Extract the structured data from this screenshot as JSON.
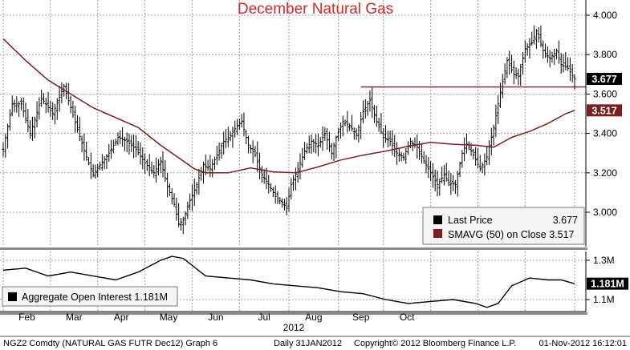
{
  "chart_data": [
    {
      "type": "ohlc",
      "title": "December Natural Gas",
      "x_tick_labels": [
        "Feb",
        "Mar",
        "Apr",
        "May",
        "Jun",
        "Jul",
        "Aug",
        "Sep",
        "Oct"
      ],
      "x_year_label": "2012",
      "y_ticks": [
        "3.000",
        "3.200",
        "3.400",
        "3.600",
        "3.800",
        "4.000"
      ],
      "ylim": [
        2.87,
        4.04
      ],
      "grid": true,
      "legend_position": "bottom-right",
      "series": [
        {
          "name": "Last Price",
          "last_value": "3.677",
          "color": "#000000",
          "price_path": [
            [
              0,
              3.32
            ],
            [
              4,
              3.55
            ],
            [
              8,
              3.55
            ],
            [
              12,
              3.4
            ],
            [
              17,
              3.58
            ],
            [
              22,
              3.5
            ],
            [
              27,
              3.64
            ],
            [
              30,
              3.53
            ],
            [
              33,
              3.42
            ],
            [
              37,
              3.28
            ],
            [
              40,
              3.19
            ],
            [
              43,
              3.24
            ],
            [
              47,
              3.3
            ],
            [
              51,
              3.38
            ],
            [
              55,
              3.36
            ],
            [
              59,
              3.32
            ],
            [
              63,
              3.25
            ],
            [
              67,
              3.2
            ],
            [
              70,
              3.26
            ],
            [
              73,
              3.13
            ],
            [
              76,
              3.04
            ],
            [
              78,
              2.94
            ],
            [
              80,
              2.96
            ],
            [
              83,
              3.06
            ],
            [
              86,
              3.14
            ],
            [
              89,
              3.24
            ],
            [
              92,
              3.22
            ],
            [
              95,
              3.29
            ],
            [
              98,
              3.36
            ],
            [
              101,
              3.39
            ],
            [
              104,
              3.44
            ],
            [
              106,
              3.46
            ],
            [
              109,
              3.34
            ],
            [
              112,
              3.29
            ],
            [
              115,
              3.19
            ],
            [
              118,
              3.14
            ],
            [
              121,
              3.08
            ],
            [
              124,
              3.05
            ],
            [
              126,
              3.02
            ],
            [
              128,
              3.14
            ],
            [
              131,
              3.22
            ],
            [
              134,
              3.31
            ],
            [
              137,
              3.36
            ],
            [
              140,
              3.34
            ],
            [
              143,
              3.4
            ],
            [
              146,
              3.3
            ],
            [
              148,
              3.38
            ],
            [
              151,
              3.46
            ],
            [
              154,
              3.44
            ],
            [
              157,
              3.39
            ],
            [
              160,
              3.51
            ],
            [
              163,
              3.57
            ],
            [
              166,
              3.46
            ],
            [
              169,
              3.38
            ],
            [
              172,
              3.36
            ],
            [
              175,
              3.3
            ],
            [
              178,
              3.28
            ],
            [
              181,
              3.36
            ],
            [
              184,
              3.33
            ],
            [
              187,
              3.26
            ],
            [
              190,
              3.2
            ],
            [
              193,
              3.14
            ],
            [
              196,
              3.19
            ],
            [
              198,
              3.15
            ],
            [
              201,
              3.14
            ],
            [
              204,
              3.3
            ],
            [
              206,
              3.35
            ],
            [
              209,
              3.29
            ],
            [
              212,
              3.22
            ],
            [
              215,
              3.28
            ],
            [
              218,
              3.43
            ],
            [
              221,
              3.61
            ],
            [
              224,
              3.77
            ],
            [
              227,
              3.7
            ],
            [
              229,
              3.69
            ],
            [
              232,
              3.83
            ],
            [
              235,
              3.86
            ],
            [
              237,
              3.92
            ],
            [
              240,
              3.82
            ],
            [
              243,
              3.78
            ],
            [
              246,
              3.82
            ],
            [
              248,
              3.75
            ],
            [
              251,
              3.73
            ],
            [
              254,
              3.677
            ]
          ]
        },
        {
          "name": "SMAVG (50) on Close",
          "last_value": "3.517",
          "color": "#7a1f1f",
          "points": [
            [
              0,
              3.88
            ],
            [
              10,
              3.77
            ],
            [
              20,
              3.67
            ],
            [
              30,
              3.6
            ],
            [
              40,
              3.53
            ],
            [
              50,
              3.48
            ],
            [
              60,
              3.43
            ],
            [
              70,
              3.34
            ],
            [
              80,
              3.26
            ],
            [
              85,
              3.22
            ],
            [
              90,
              3.2
            ],
            [
              100,
              3.2
            ],
            [
              110,
              3.225
            ],
            [
              120,
              3.205
            ],
            [
              130,
              3.2
            ],
            [
              140,
              3.23
            ],
            [
              150,
              3.265
            ],
            [
              160,
              3.29
            ],
            [
              170,
              3.31
            ],
            [
              180,
              3.335
            ],
            [
              190,
              3.355
            ],
            [
              200,
              3.345
            ],
            [
              210,
              3.34
            ],
            [
              218,
              3.33
            ],
            [
              226,
              3.38
            ],
            [
              234,
              3.41
            ],
            [
              242,
              3.45
            ],
            [
              250,
              3.5
            ],
            [
              254,
              3.517
            ]
          ]
        }
      ],
      "reference_line": {
        "value": 3.636,
        "color": "#7a1f1f"
      }
    },
    {
      "type": "line",
      "y_ticks": [
        "1.3M",
        "1.1M"
      ],
      "ylim": [
        1.05,
        1.34
      ],
      "grid": true,
      "legend_position": "left",
      "series": [
        {
          "name": "Aggregate Open Interest",
          "last_value": "1.181M",
          "color": "#000000",
          "points": [
            [
              0,
              1.25
            ],
            [
              10,
              1.26
            ],
            [
              20,
              1.22
            ],
            [
              30,
              1.24
            ],
            [
              40,
              1.22
            ],
            [
              50,
              1.2
            ],
            [
              60,
              1.24
            ],
            [
              70,
              1.3
            ],
            [
              75,
              1.32
            ],
            [
              80,
              1.31
            ],
            [
              90,
              1.22
            ],
            [
              100,
              1.21
            ],
            [
              110,
              1.2
            ],
            [
              120,
              1.18
            ],
            [
              130,
              1.17
            ],
            [
              140,
              1.16
            ],
            [
              150,
              1.14
            ],
            [
              160,
              1.13
            ],
            [
              170,
              1.1
            ],
            [
              180,
              1.08
            ],
            [
              190,
              1.09
            ],
            [
              200,
              1.1
            ],
            [
              210,
              1.08
            ],
            [
              215,
              1.06
            ],
            [
              220,
              1.08
            ],
            [
              226,
              1.17
            ],
            [
              234,
              1.21
            ],
            [
              242,
              1.2
            ],
            [
              248,
              1.2
            ],
            [
              254,
              1.181
            ]
          ]
        }
      ]
    }
  ],
  "footer": {
    "security": "NGZ2 Comdty (NATURAL GAS FUTR  Dec12) Graph 6",
    "period": "Daily 31JAN2012",
    "copyright": "Copyright© 2012 Bloomberg Finance L.P.",
    "timestamp": "01-Nov-2012 16:12:01"
  }
}
